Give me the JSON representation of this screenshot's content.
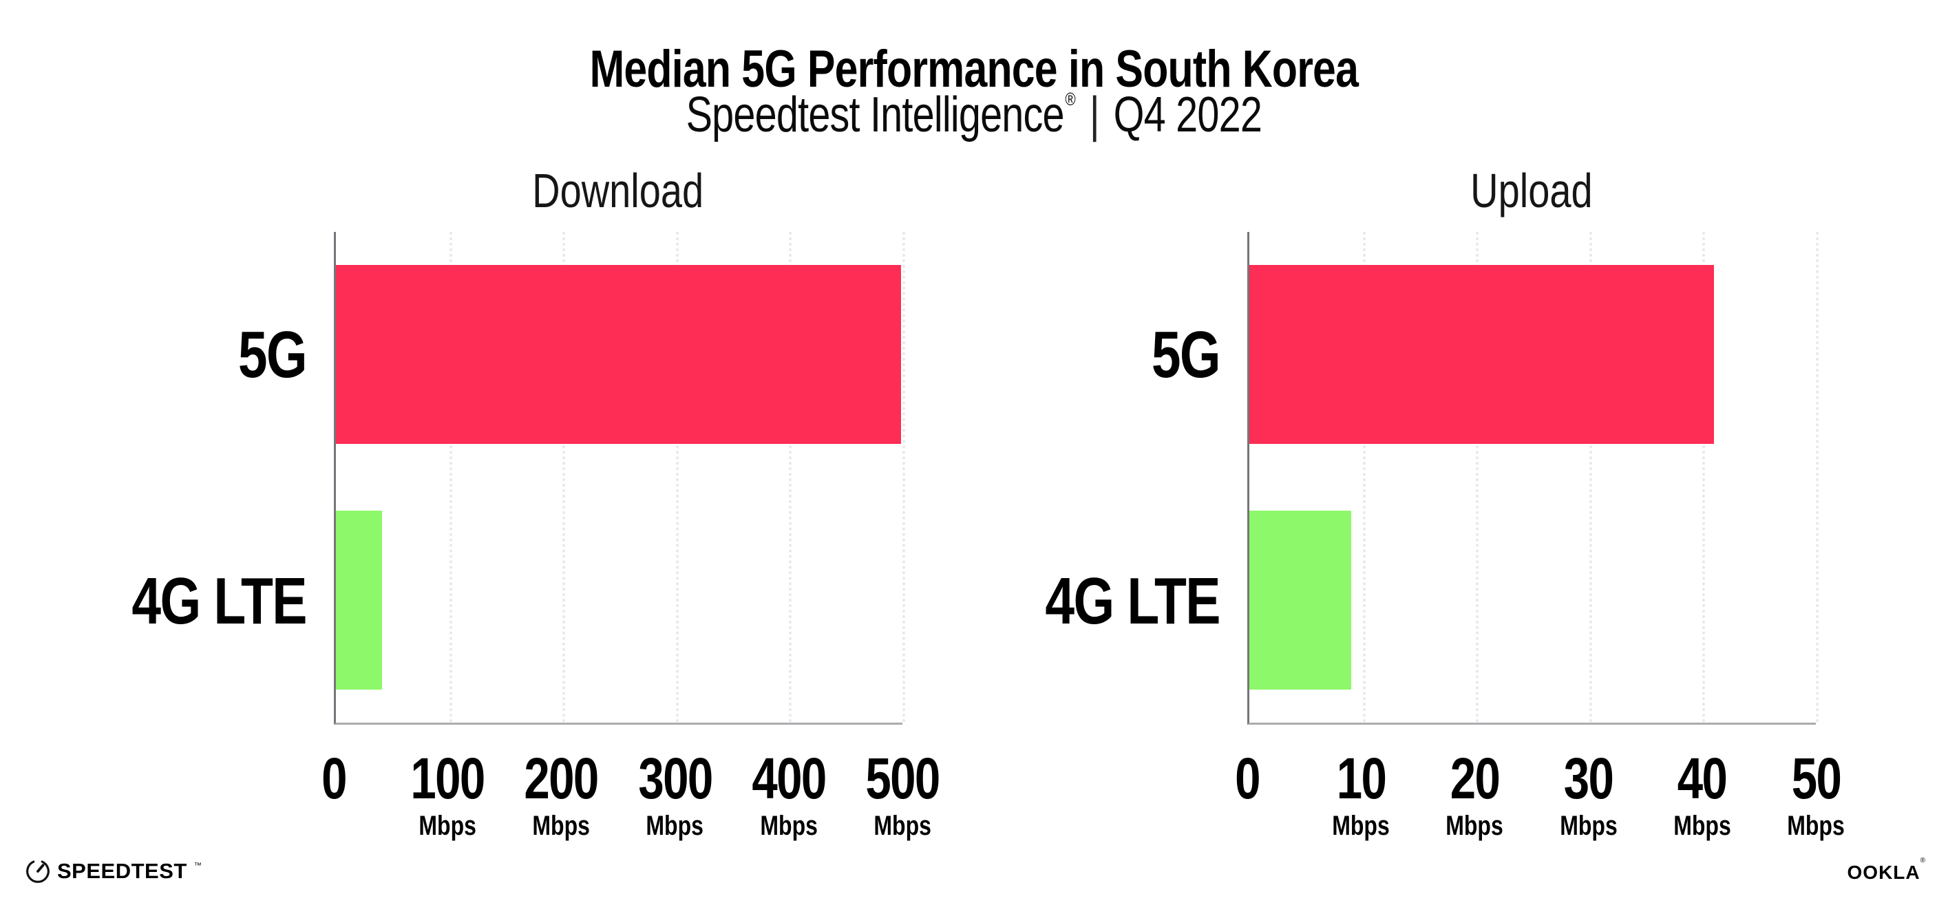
{
  "header": {
    "title": "Median 5G Performance in South Korea",
    "subtitle_brand": "Speedtest Intelligence",
    "subtitle_reg": "®",
    "subtitle_sep": "|",
    "subtitle_period": "Q4 2022"
  },
  "chart_data": [
    {
      "type": "bar",
      "orientation": "horizontal",
      "title": "Download",
      "categories": [
        "5G",
        "4G LTE"
      ],
      "values": [
        499,
        41
      ],
      "unit": "Mbps",
      "xlim": [
        0,
        500
      ],
      "ticks": [
        {
          "label": "0",
          "unit": ""
        },
        {
          "label": "100",
          "unit": "Mbps"
        },
        {
          "label": "200",
          "unit": "Mbps"
        },
        {
          "label": "300",
          "unit": "Mbps"
        },
        {
          "label": "400",
          "unit": "Mbps"
        },
        {
          "label": "500",
          "unit": "Mbps"
        }
      ],
      "series_colors": [
        "#FD2D55",
        "#8DF869"
      ],
      "grid": "vertical-dotted",
      "legend": "none"
    },
    {
      "type": "bar",
      "orientation": "horizontal",
      "title": "Upload",
      "categories": [
        "5G",
        "4G LTE"
      ],
      "values": [
        41,
        9
      ],
      "unit": "Mbps",
      "xlim": [
        0,
        50
      ],
      "ticks": [
        {
          "label": "0",
          "unit": ""
        },
        {
          "label": "10",
          "unit": "Mbps"
        },
        {
          "label": "20",
          "unit": "Mbps"
        },
        {
          "label": "30",
          "unit": "Mbps"
        },
        {
          "label": "40",
          "unit": "Mbps"
        },
        {
          "label": "50",
          "unit": "Mbps"
        }
      ],
      "series_colors": [
        "#FD2D55",
        "#8DF869"
      ],
      "grid": "vertical-dotted",
      "legend": "none"
    }
  ],
  "footer": {
    "speedtest_text": "SPEEDTEST",
    "speedtest_mark": "™",
    "ookla_text": "OOKLA",
    "ookla_mark": "®"
  },
  "colors": {
    "bar_5g": "#FD2D55",
    "bar_4g_lte": "#8DF869",
    "gridline": "#E7E7EE",
    "x_axis": "#ABABAF",
    "y_axis": "#75757B",
    "text": "#000000",
    "background": "#FFFFFF"
  }
}
